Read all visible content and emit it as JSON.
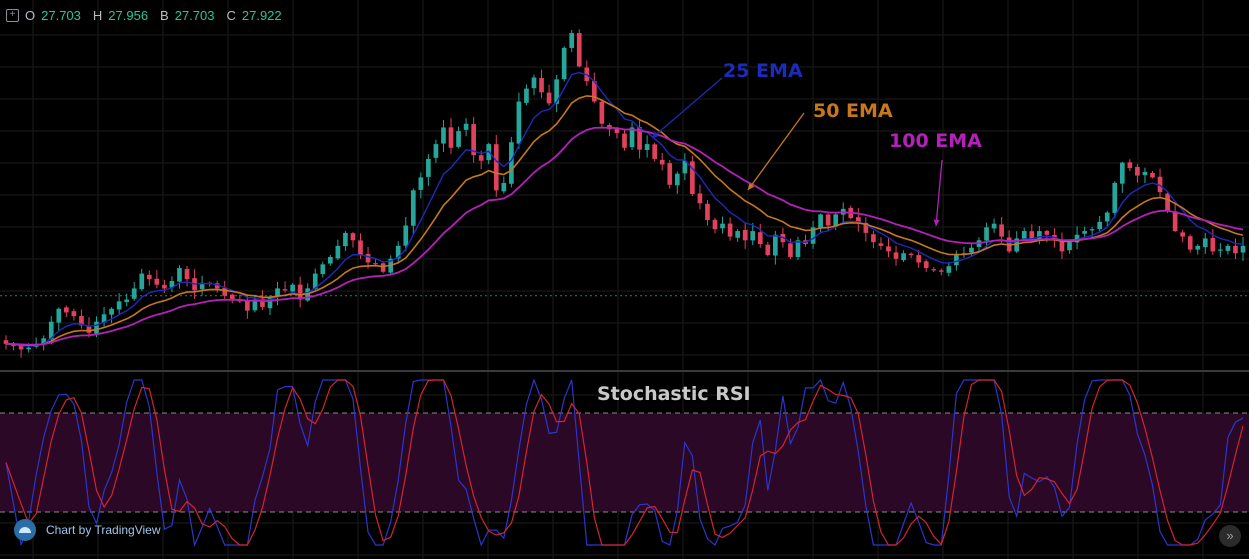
{
  "ohlc": {
    "o_label": "O",
    "o": "27.703",
    "h_label": "H",
    "h": "27.956",
    "b_label": "B",
    "b": "27.703",
    "c_label": "C",
    "c": "27.922"
  },
  "annotations": {
    "ema25": "25 EMA",
    "ema50": "50 EMA",
    "ema100": "100 EMA",
    "stoch_title": "Stochastic RSI"
  },
  "footer": {
    "brand": "Chart by TradingView"
  },
  "colors": {
    "background": "#000000",
    "grid": "#1b1b1b",
    "up": "#26a69a",
    "down": "#e0415d",
    "ema25": "#1c2bb8",
    "ema50": "#c7781c",
    "ema100": "#b321b8",
    "k_line": "#2c36c9",
    "d_line": "#d2252f",
    "band": "#2a0826"
  },
  "chart_data": [
    {
      "type": "candlestick",
      "series": [
        {
          "name": "25 EMA"
        },
        {
          "name": "50 EMA"
        },
        {
          "name": "100 EMA"
        }
      ],
      "price_ylim": [
        25.0,
        43.0
      ],
      "closes": [
        25.6,
        25.5,
        25.3,
        25.4,
        25.6,
        25.9,
        26.8,
        27.5,
        27.3,
        27.1,
        26.6,
        26.2,
        26.8,
        27.2,
        27.5,
        27.9,
        28.0,
        28.6,
        29.4,
        29.1,
        28.8,
        28.6,
        29.0,
        29.7,
        29.1,
        28.5,
        28.9,
        28.9,
        28.6,
        28.2,
        28.0,
        27.9,
        27.4,
        28.0,
        27.6,
        28.1,
        28.6,
        28.5,
        28.8,
        28.0,
        28.6,
        29.4,
        29.9,
        30.3,
        30.9,
        31.6,
        31.2,
        30.4,
        30.0,
        29.9,
        29.5,
        30.2,
        30.9,
        32.0,
        33.9,
        34.6,
        35.6,
        36.4,
        37.3,
        36.2,
        37.1,
        37.5,
        35.8,
        35.5,
        36.4,
        33.9,
        34.3,
        36.5,
        38.7,
        39.4,
        40.0,
        39.2,
        38.6,
        39.9,
        41.6,
        42.4,
        40.6,
        39.8,
        38.7,
        37.5,
        37.2,
        37.0,
        36.2,
        37.3,
        36.1,
        36.4,
        35.6,
        35.3,
        34.2,
        34.8,
        35.5,
        33.7,
        33.2,
        32.3,
        31.8,
        32.1,
        31.4,
        31.7,
        31.2,
        31.7,
        31.0,
        30.4,
        31.5,
        31.1,
        30.3,
        31.2,
        31.0,
        31.9,
        32.6,
        32.0,
        32.6,
        32.9,
        32.4,
        32.1,
        31.6,
        31.1,
        30.9,
        30.6,
        30.2,
        30.5,
        30.4,
        30.0,
        29.7,
        29.6,
        29.5,
        29.8,
        30.4,
        30.5,
        30.8,
        31.2,
        31.9,
        32.1,
        31.4,
        30.6,
        31.3,
        31.7,
        31.3,
        31.7,
        31.5,
        31.2,
        30.6,
        31.1,
        31.5,
        31.7,
        31.8,
        32.2,
        32.7,
        34.3,
        35.4,
        35.1,
        34.7,
        34.9,
        34.6,
        33.8,
        32.8,
        31.7,
        31.4,
        30.7,
        30.9,
        31.3,
        30.6,
        30.7,
        30.9,
        30.5,
        30.9
      ]
    },
    {
      "type": "line",
      "title": "Stochastic RSI",
      "series": [],
      "ylim": [
        0,
        100
      ],
      "bands": [
        20,
        80
      ]
    }
  ]
}
